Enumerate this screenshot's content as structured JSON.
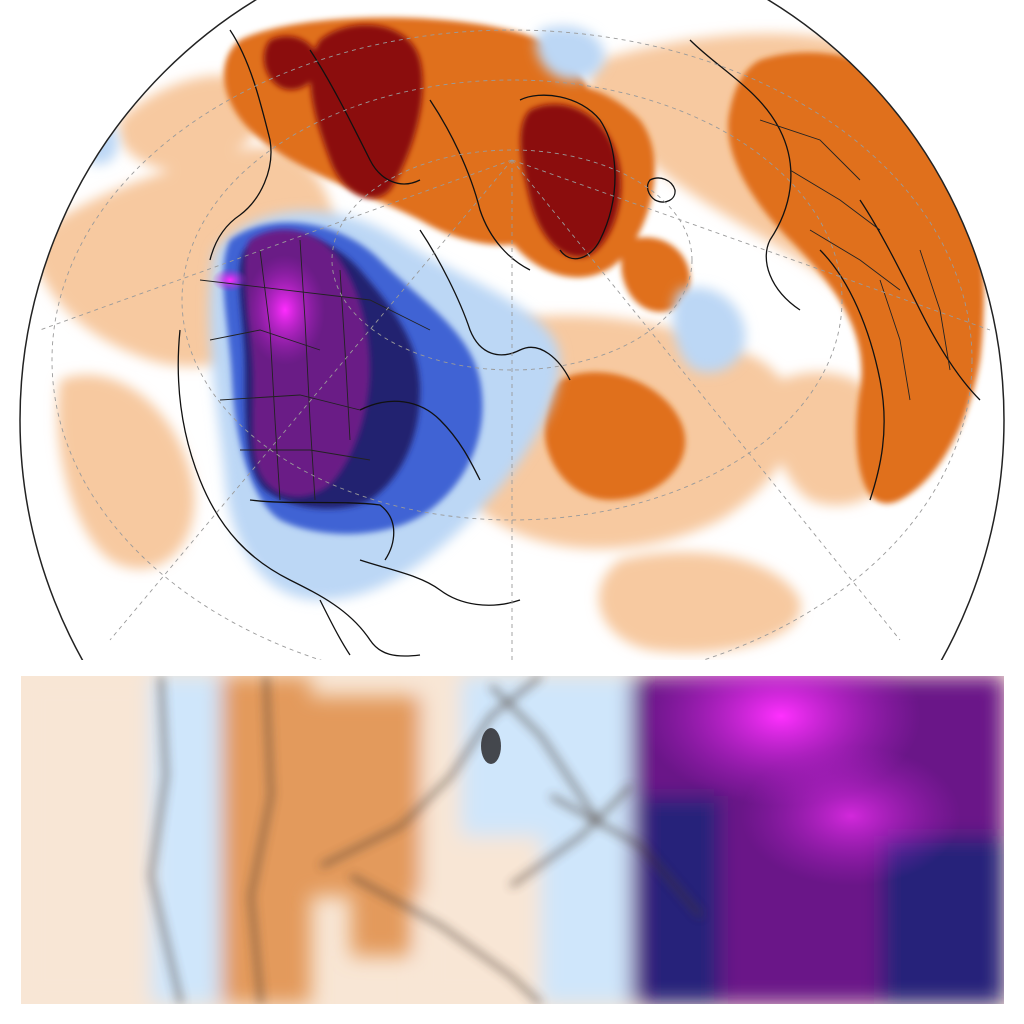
{
  "map": {
    "projection": "orthographic-northern-hemisphere",
    "field": "temperature-anomaly",
    "palette": {
      "warm_strong": "#8b0a0a",
      "warm_mid": "#e0701a",
      "warm_light": "#f7c9a0",
      "neutral": "#ffffff",
      "cool_light": "#bcd7f5",
      "cool_mid": "#3f64d4",
      "cool_dark": "#22226f",
      "cold_extreme_purple": "#6b1a86",
      "cold_extreme_magenta": "#e21ce6"
    },
    "coastline_color": "#111111",
    "grid_line_color": "#9a9a9a"
  },
  "zoom_view": {
    "subject": "enlarged-detail-of-western-north-america",
    "palette": {
      "warm": "#e39a5c",
      "light": "#f8e6d5",
      "cool": "#cfe6fb",
      "dark_blue": "#25207a",
      "magenta": "#e21ce6",
      "purple": "#6a1788"
    }
  }
}
